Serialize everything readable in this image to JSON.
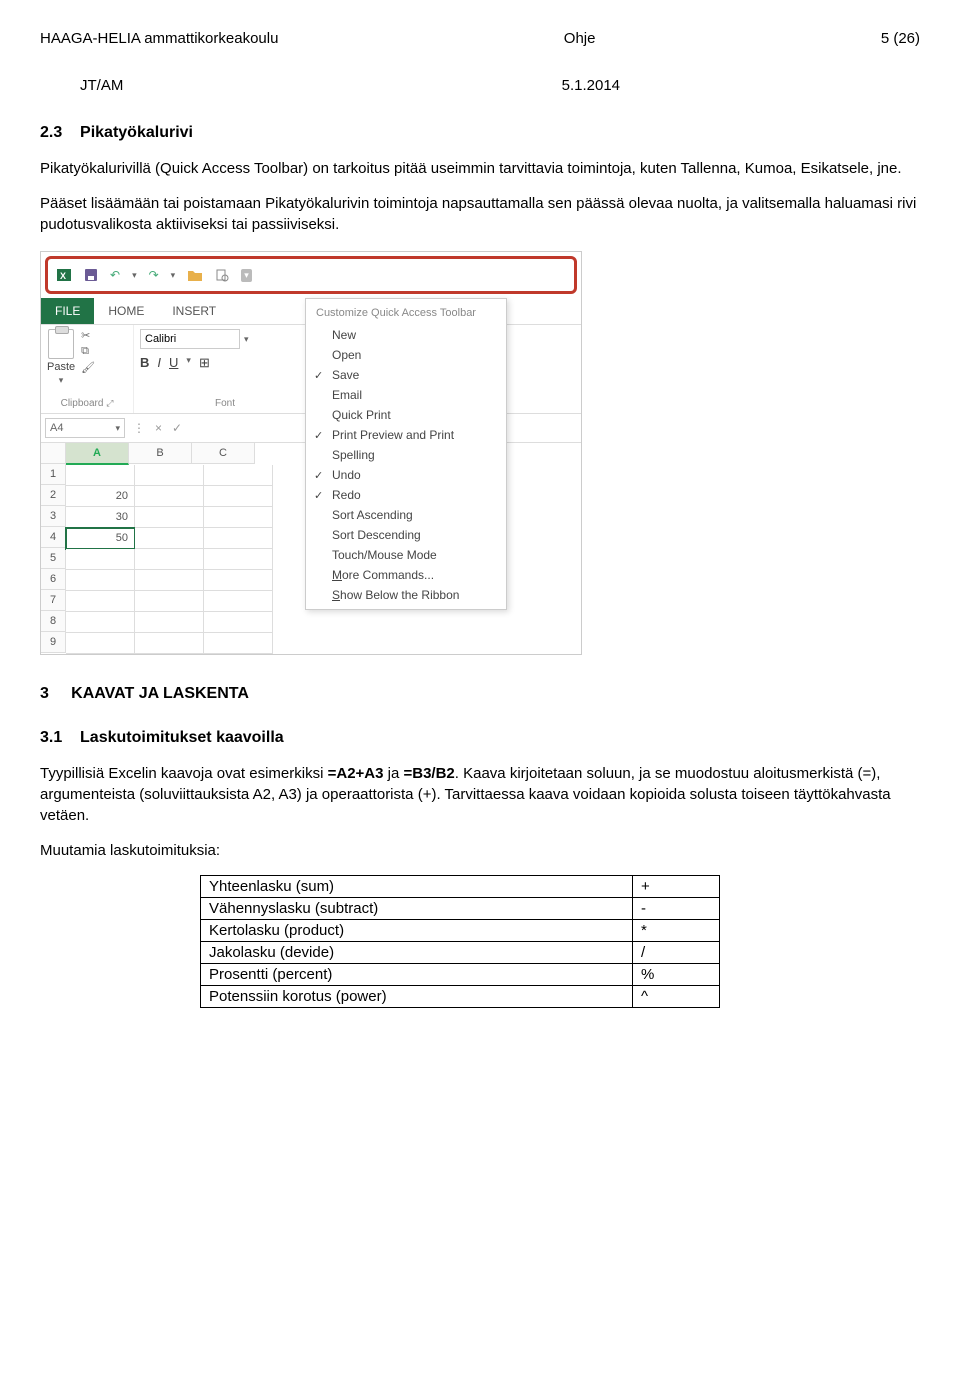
{
  "header": {
    "left": "HAAGA-HELIA ammattikorkeakoulu",
    "mid": "Ohje",
    "right": "5 (26)"
  },
  "subheader": {
    "left": "JT/AM",
    "right": "5.1.2014"
  },
  "sec23": {
    "num": "2.3",
    "title": "Pikatyökalurivi",
    "p1": "Pikatyökalurivillä (Quick Access Toolbar) on tarkoitus pitää useimmin tarvittavia toimintoja, kuten Tallenna, Kumoa, Esikatsele, jne.",
    "p2": "Pääset lisäämään tai poistamaan Pikatyökalurivin toimintoja napsauttamalla sen päässä olevaa nuolta, ja valitsemalla haluamasi rivi pudotusvalikosta aktiiviseksi tai passiiviseksi."
  },
  "excel": {
    "tabs": {
      "file": "FILE",
      "home": "HOME",
      "insert": "INSERT"
    },
    "paste": "Paste",
    "clipboard": "Clipboard",
    "font": "Font",
    "fontname": "Calibri",
    "b": "B",
    "i": "I",
    "u": "U",
    "namebox": "A4",
    "cols": [
      "A",
      "B",
      "C"
    ],
    "rows": [
      "1",
      "2",
      "3",
      "4",
      "5",
      "6",
      "7",
      "8",
      "9"
    ],
    "vals": {
      "a2": "20",
      "a3": "30",
      "a4": "50"
    },
    "menu_title": "Customize Quick Access Toolbar",
    "menu": [
      {
        "label": "New",
        "checked": false
      },
      {
        "label": "Open",
        "checked": false
      },
      {
        "label": "Save",
        "checked": true
      },
      {
        "label": "Email",
        "checked": false
      },
      {
        "label": "Quick Print",
        "checked": false
      },
      {
        "label": "Print Preview and Print",
        "checked": true
      },
      {
        "label": "Spelling",
        "checked": false
      },
      {
        "label": "Undo",
        "checked": true
      },
      {
        "label": "Redo",
        "checked": true
      },
      {
        "label": "Sort Ascending",
        "checked": false
      },
      {
        "label": "Sort Descending",
        "checked": false
      },
      {
        "label": "Touch/Mouse Mode",
        "checked": false
      }
    ],
    "menu_more": "More Commands...",
    "menu_below": "Show Below the Ribbon",
    "menu_more_ul": "M",
    "menu_below_ul": "S"
  },
  "sec3": {
    "num": "3",
    "title": "KAAVAT JA LASKENTA"
  },
  "sec31": {
    "num": "3.1",
    "title": "Laskutoimitukset kaavoilla",
    "p1a": "Tyypillisiä Excelin kaavoja ovat esimerkiksi ",
    "p1b": "=A2+A3",
    "p1c": " ja ",
    "p1d": "=B3/B2",
    "p1e": ". Kaava kirjoitetaan soluun, ja se muodostuu aloitusmerkistä (=), argumenteista (soluviittauksista A2, A3) ja operaattorista (+). Tarvittaessa kaava voidaan kopioida solusta toiseen täyttökahvasta vetäen.",
    "p2": "Muutamia laskutoimituksia:"
  },
  "ops": [
    {
      "name": "Yhteenlasku (sum)",
      "sym": "+"
    },
    {
      "name": "Vähennyslasku (subtract)",
      "sym": "-"
    },
    {
      "name": "Kertolasku (product)",
      "sym": "*"
    },
    {
      "name": "Jakolasku (devide)",
      "sym": "/"
    },
    {
      "name": "Prosentti (percent)",
      "sym": "%"
    },
    {
      "name": "Potenssiin korotus (power)",
      "sym": "^"
    }
  ]
}
